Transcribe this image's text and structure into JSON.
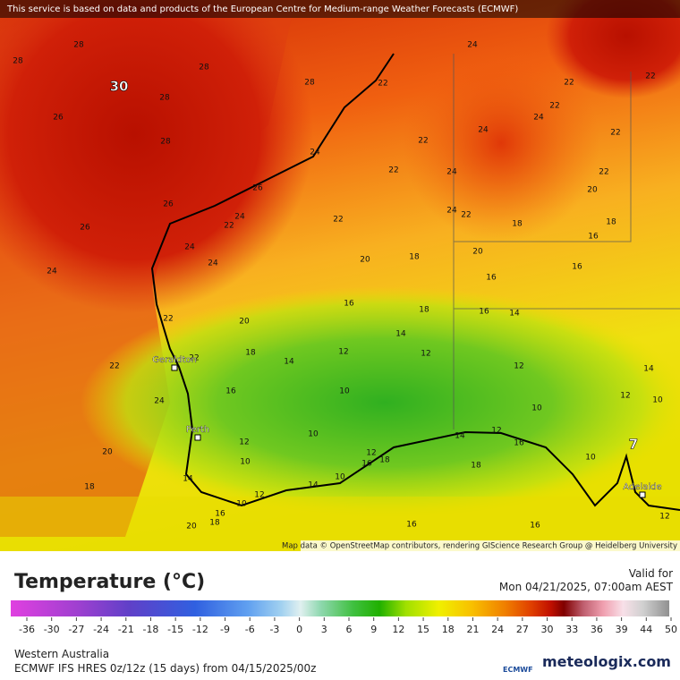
{
  "header": {
    "credit": "This service is based on data and products of the European Centre for Medium-range Weather Forecasts (ECMWF)"
  },
  "map": {
    "contour_labels": [
      28,
      28,
      28,
      30,
      28,
      26,
      28,
      28,
      22,
      24,
      22,
      22,
      22,
      24,
      22,
      24,
      22,
      24,
      22,
      24,
      22,
      20,
      26,
      26,
      24,
      22,
      22,
      24,
      22,
      18,
      18,
      26,
      24,
      16,
      20,
      20,
      18,
      24,
      16,
      24,
      16,
      22,
      20,
      16,
      18,
      16,
      14,
      14,
      18,
      12,
      12,
      14,
      22,
      22,
      12,
      14,
      10,
      16,
      12,
      10,
      24,
      10,
      10,
      12,
      14,
      12,
      16,
      20,
      10,
      12,
      18,
      16,
      18,
      10,
      14,
      10,
      14,
      12,
      10,
      18,
      16,
      18,
      20,
      16,
      16,
      12,
      7
    ],
    "cities": [
      "Geraldton",
      "Perth",
      "Adelaide"
    ],
    "attribution": "Map data © OpenStreetMap contributors, rendering GIScience Research Group @ Heidelberg University"
  },
  "legend": {
    "title": "Temperature (°C)",
    "valid_label": "Valid for",
    "valid_time": "Mon 04/21/2025, 07:00am AEST",
    "ticks": [
      -36,
      -30,
      -27,
      -24,
      -21,
      -18,
      -15,
      -12,
      -9,
      -6,
      -3,
      0,
      3,
      6,
      9,
      12,
      15,
      18,
      21,
      24,
      27,
      30,
      33,
      36,
      39,
      44,
      50
    ]
  },
  "footer": {
    "region": "Western Australia",
    "model": "ECMWF IFS HRES 0z/12z (15 days) from 04/15/2025/00z",
    "ecmwf": "ECMWF",
    "brand": "meteologix.com"
  }
}
